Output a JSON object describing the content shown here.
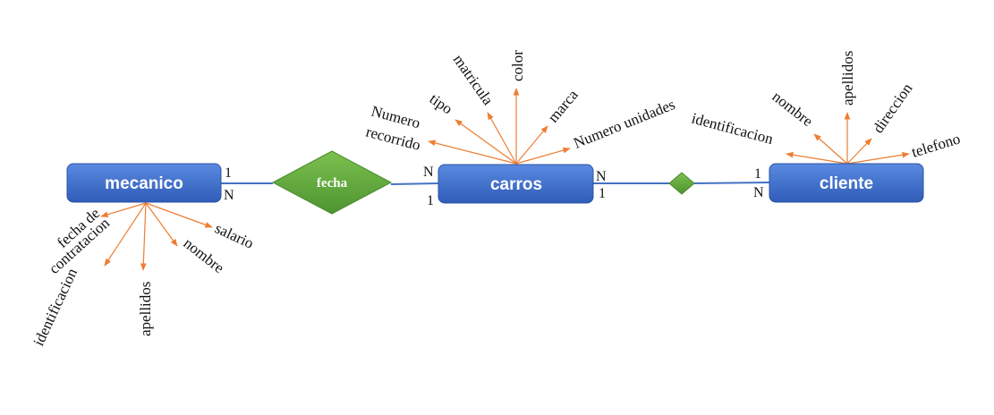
{
  "colors": {
    "entity": "#3f6fcf",
    "relationship": "#5fa33a",
    "connector": "#4472c4",
    "attribute_arrow": "#ed7d31"
  },
  "entities": {
    "mecanico": "mecanico",
    "carros": "carros",
    "cliente": "cliente"
  },
  "relationships": {
    "fecha": "fecha",
    "carros_cliente": ""
  },
  "cardinalities": {
    "mecanico_fecha": {
      "top": "1",
      "bottom": "N"
    },
    "fecha_carros": {
      "top": "N",
      "bottom": "1"
    },
    "carros_rel": {
      "top": "N",
      "bottom": "1"
    },
    "rel_cliente": {
      "top": "1",
      "bottom": "N"
    }
  },
  "attributes": {
    "mecanico": {
      "fecha_contratacion_line1": "fecha de",
      "fecha_contratacion_line2": "contratacion",
      "identificacion": "identificacion",
      "apellidos": "apellidos",
      "nombre": "nombre",
      "salario": "salario"
    },
    "carros": {
      "numero_recorrido_line1": "Numero",
      "numero_recorrido_line2": "recorrido",
      "tipo": "tipo",
      "matricula": "matricula",
      "color": "color",
      "marca": "marca",
      "numero_unidades": "Numero unidades"
    },
    "cliente": {
      "identificacion": "identificacion",
      "nombre": "nombre",
      "apellidos": "apellidos",
      "direccion": "direccion",
      "telefono": "telefono"
    }
  }
}
